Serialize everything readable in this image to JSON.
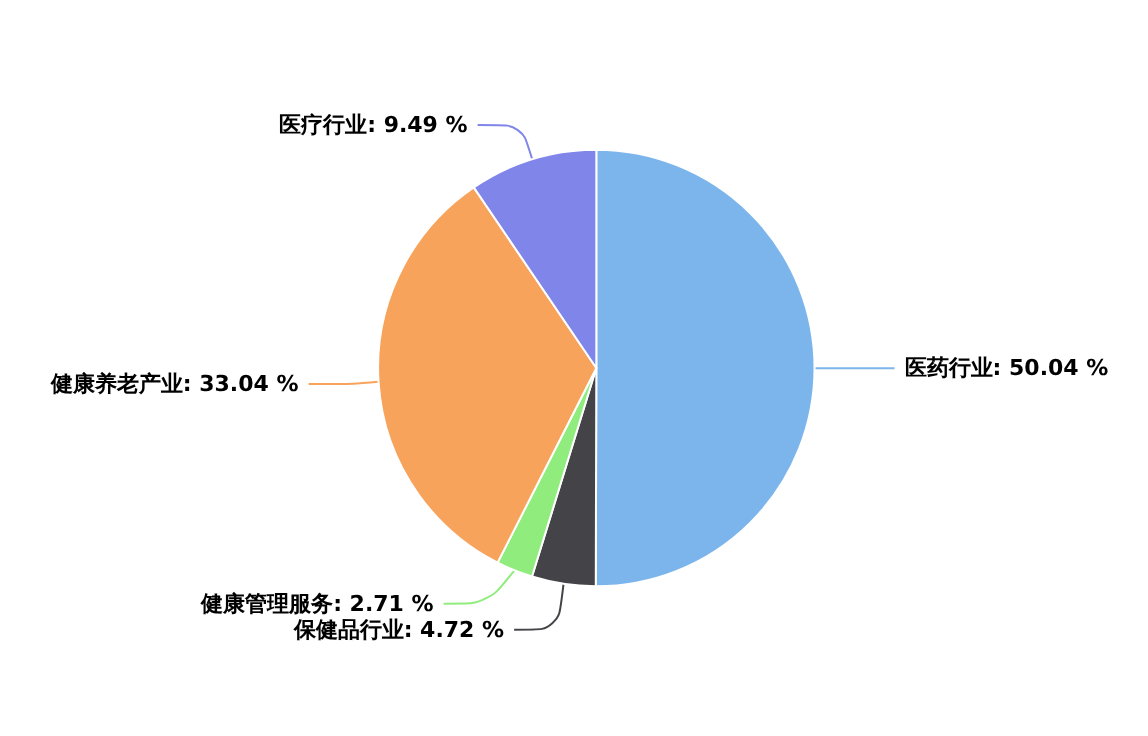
{
  "chart_data": {
    "type": "pie",
    "categories": [
      "医药行业",
      "保健品行业",
      "健康管理服务",
      "健康养老产业",
      "医疗行业"
    ],
    "values": [
      50.04,
      4.72,
      2.71,
      33.04,
      9.49
    ],
    "value_labels": [
      "50.04 %",
      "4.72 %",
      "2.71 %",
      "33.04 %",
      "9.49 %"
    ],
    "colors": [
      "#7cb5ec",
      "#434348",
      "#90ed7d",
      "#f7a35c",
      "#8085e9"
    ],
    "legend": false
  }
}
